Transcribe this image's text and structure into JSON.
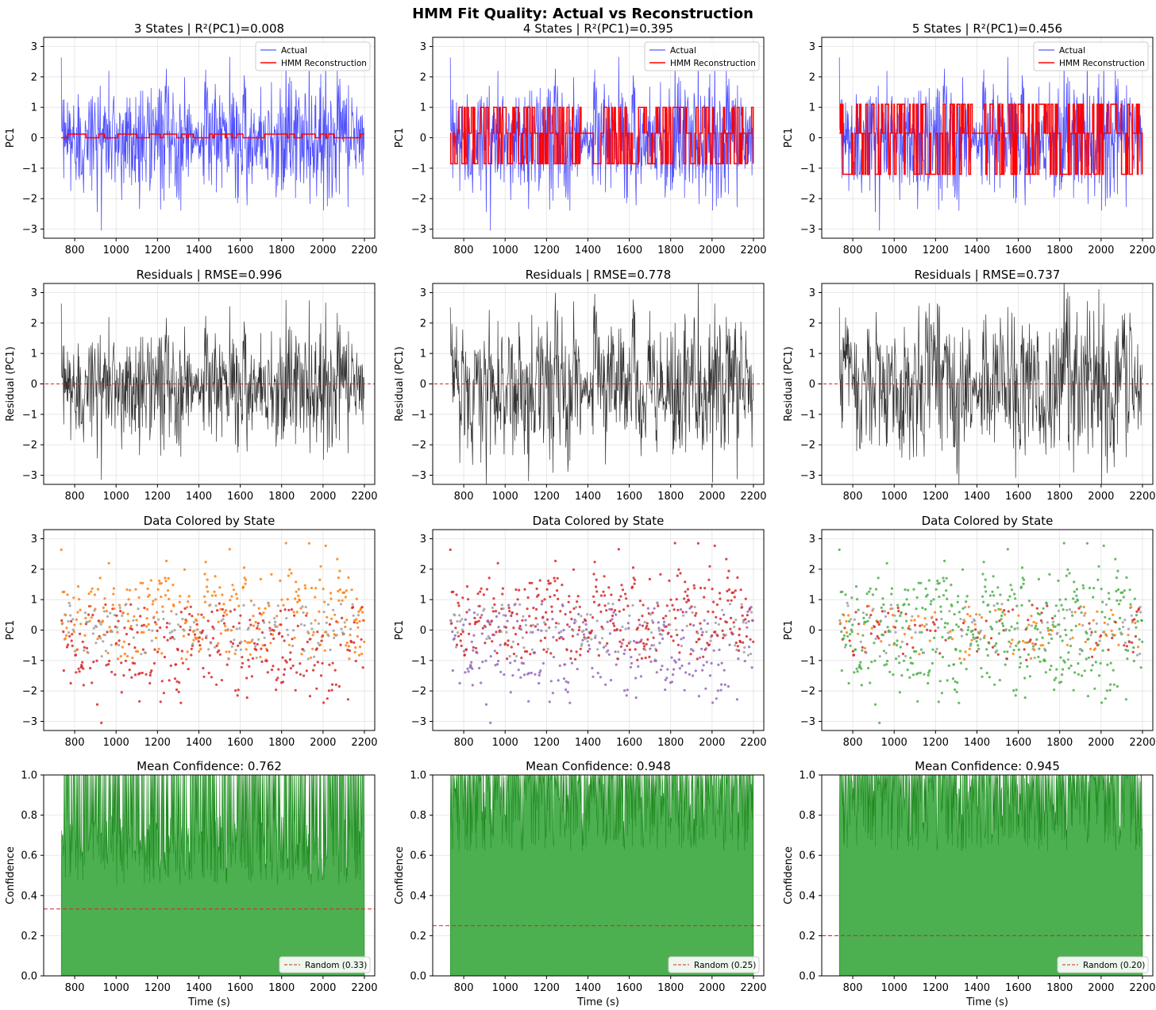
{
  "figure": {
    "suptitle": "HMM Fit Quality: Actual vs Reconstruction"
  },
  "colors": {
    "actual": "#3333ff",
    "reconstruction": "#ff0000",
    "residual": "#333333",
    "zero_line": "#d62728",
    "confidence_fill": "#4caf50",
    "confidence_line": "#1f8a1f",
    "random_line": "#d62728",
    "state_colors": [
      "#a0a0a0",
      "#ff7f0e",
      "#d62728",
      "#9467bd",
      "#4daf4a"
    ]
  },
  "chart_data": [
    {
      "type": "line",
      "row": 0,
      "col": 0,
      "states": 3,
      "title": "3 States | R²(PC1)=0.008",
      "xlabel": "",
      "ylabel": "PC1",
      "xlim": [
        650,
        2250
      ],
      "ylim": [
        -3.3,
        3.3
      ],
      "xticks": [
        800,
        1000,
        1200,
        1400,
        1600,
        1800,
        2000,
        2200
      ],
      "yticks": [
        -3,
        -2,
        -1,
        0,
        1,
        2,
        3
      ],
      "x_range": [
        735,
        2200
      ],
      "recon_levels": [
        0.12,
        0.0
      ],
      "legend": [
        "Actual",
        "HMM Reconstruction"
      ],
      "legend_loc": "upper right"
    },
    {
      "type": "line",
      "row": 0,
      "col": 1,
      "states": 4,
      "title": "4 States | R²(PC1)=0.395",
      "xlabel": "",
      "ylabel": "PC1",
      "xlim": [
        650,
        2250
      ],
      "ylim": [
        -3.3,
        3.3
      ],
      "xticks": [
        800,
        1000,
        1200,
        1400,
        1600,
        1800,
        2000,
        2200
      ],
      "yticks": [
        -3,
        -2,
        -1,
        0,
        1,
        2,
        3
      ],
      "x_range": [
        735,
        2200
      ],
      "recon_levels": [
        1.0,
        0.15,
        -0.85
      ],
      "legend": [
        "Actual",
        "HMM Reconstruction"
      ],
      "legend_loc": "upper right"
    },
    {
      "type": "line",
      "row": 0,
      "col": 2,
      "states": 5,
      "title": "5 States | R²(PC1)=0.456",
      "xlabel": "",
      "ylabel": "PC1",
      "xlim": [
        650,
        2250
      ],
      "ylim": [
        -3.3,
        3.3
      ],
      "xticks": [
        800,
        1000,
        1200,
        1400,
        1600,
        1800,
        2000,
        2200
      ],
      "yticks": [
        -3,
        -2,
        -1,
        0,
        1,
        2,
        3
      ],
      "x_range": [
        735,
        2200
      ],
      "recon_levels": [
        1.1,
        0.15,
        -1.2
      ],
      "legend": [
        "Actual",
        "HMM Reconstruction"
      ],
      "legend_loc": "upper right"
    },
    {
      "type": "line",
      "row": 1,
      "col": 0,
      "states": 3,
      "title": "Residuals | RMSE=0.996",
      "xlabel": "",
      "ylabel": "Residual (PC1)",
      "xlim": [
        650,
        2250
      ],
      "ylim": [
        -3.3,
        3.3
      ],
      "xticks": [
        800,
        1000,
        1200,
        1400,
        1600,
        1800,
        2000,
        2200
      ],
      "yticks": [
        -3,
        -2,
        -1,
        0,
        1,
        2,
        3
      ],
      "x_range": [
        735,
        2200
      ],
      "reference_line": 0
    },
    {
      "type": "line",
      "row": 1,
      "col": 1,
      "states": 4,
      "title": "Residuals | RMSE=0.778",
      "xlabel": "",
      "ylabel": "Residual (PC1)",
      "xlim": [
        650,
        2250
      ],
      "ylim": [
        -3.3,
        3.3
      ],
      "xticks": [
        800,
        1000,
        1200,
        1400,
        1600,
        1800,
        2000,
        2200
      ],
      "yticks": [
        -3,
        -2,
        -1,
        0,
        1,
        2,
        3
      ],
      "x_range": [
        735,
        2200
      ],
      "reference_line": 0
    },
    {
      "type": "line",
      "row": 1,
      "col": 2,
      "states": 5,
      "title": "Residuals | RMSE=0.737",
      "xlabel": "",
      "ylabel": "Residual (PC1)",
      "xlim": [
        650,
        2250
      ],
      "ylim": [
        -3.3,
        3.3
      ],
      "xticks": [
        800,
        1000,
        1200,
        1400,
        1600,
        1800,
        2000,
        2200
      ],
      "yticks": [
        -3,
        -2,
        -1,
        0,
        1,
        2,
        3
      ],
      "x_range": [
        735,
        2200
      ],
      "reference_line": 0
    },
    {
      "type": "scatter",
      "row": 2,
      "col": 0,
      "states": 3,
      "title": "Data Colored by State",
      "xlabel": "",
      "ylabel": "PC1",
      "xlim": [
        650,
        2250
      ],
      "ylim": [
        -3.3,
        3.3
      ],
      "xticks": [
        800,
        1000,
        1200,
        1400,
        1600,
        1800,
        2000,
        2200
      ],
      "yticks": [
        -3,
        -2,
        -1,
        0,
        1,
        2,
        3
      ],
      "x_range": [
        735,
        2200
      ],
      "state_color_index": [
        0,
        1,
        2
      ]
    },
    {
      "type": "scatter",
      "row": 2,
      "col": 1,
      "states": 4,
      "title": "Data Colored by State",
      "xlabel": "",
      "ylabel": "PC1",
      "xlim": [
        650,
        2250
      ],
      "ylim": [
        -3.3,
        3.3
      ],
      "xticks": [
        800,
        1000,
        1200,
        1400,
        1600,
        1800,
        2000,
        2200
      ],
      "yticks": [
        -3,
        -2,
        -1,
        0,
        1,
        2,
        3
      ],
      "x_range": [
        735,
        2200
      ],
      "state_color_index": [
        0,
        2,
        2,
        3
      ]
    },
    {
      "type": "scatter",
      "row": 2,
      "col": 2,
      "states": 5,
      "title": "Data Colored by State",
      "xlabel": "",
      "ylabel": "PC1",
      "xlim": [
        650,
        2250
      ],
      "ylim": [
        -3.3,
        3.3
      ],
      "xticks": [
        800,
        1000,
        1200,
        1400,
        1600,
        1800,
        2000,
        2200
      ],
      "yticks": [
        -3,
        -2,
        -1,
        0,
        1,
        2,
        3
      ],
      "x_range": [
        735,
        2200
      ],
      "state_color_index": [
        1,
        4,
        2,
        0,
        4
      ]
    },
    {
      "type": "area",
      "row": 3,
      "col": 0,
      "states": 3,
      "title": "Mean Confidence: 0.762",
      "xlabel": "Time (s)",
      "ylabel": "Confidence",
      "xlim": [
        650,
        2250
      ],
      "ylim": [
        0,
        1
      ],
      "xticks": [
        800,
        1000,
        1200,
        1400,
        1600,
        1800,
        2000,
        2200
      ],
      "yticks": [
        0.0,
        0.2,
        0.4,
        0.6,
        0.8,
        1.0
      ],
      "ytick_labels": [
        "0.0",
        "0.2",
        "0.4",
        "0.6",
        "0.8",
        "1.0"
      ],
      "x_range": [
        735,
        2200
      ],
      "mean_confidence": 0.762,
      "random_line": 0.333,
      "legend": [
        "Random (0.33)"
      ],
      "legend_loc": "lower right"
    },
    {
      "type": "area",
      "row": 3,
      "col": 1,
      "states": 4,
      "title": "Mean Confidence: 0.948",
      "xlabel": "Time (s)",
      "ylabel": "Confidence",
      "xlim": [
        650,
        2250
      ],
      "ylim": [
        0,
        1
      ],
      "xticks": [
        800,
        1000,
        1200,
        1400,
        1600,
        1800,
        2000,
        2200
      ],
      "yticks": [
        0.0,
        0.2,
        0.4,
        0.6,
        0.8,
        1.0
      ],
      "ytick_labels": [
        "0.0",
        "0.2",
        "0.4",
        "0.6",
        "0.8",
        "1.0"
      ],
      "x_range": [
        735,
        2200
      ],
      "mean_confidence": 0.948,
      "random_line": 0.25,
      "legend": [
        "Random (0.25)"
      ],
      "legend_loc": "lower right"
    },
    {
      "type": "area",
      "row": 3,
      "col": 2,
      "states": 5,
      "title": "Mean Confidence: 0.945",
      "xlabel": "Time (s)",
      "ylabel": "Confidence",
      "xlim": [
        650,
        2250
      ],
      "ylim": [
        0,
        1
      ],
      "xticks": [
        800,
        1000,
        1200,
        1400,
        1600,
        1800,
        2000,
        2200
      ],
      "yticks": [
        0.0,
        0.2,
        0.4,
        0.6,
        0.8,
        1.0
      ],
      "ytick_labels": [
        "0.0",
        "0.2",
        "0.4",
        "0.6",
        "0.8",
        "1.0"
      ],
      "x_range": [
        735,
        2200
      ],
      "mean_confidence": 0.945,
      "random_line": 0.2,
      "legend": [
        "Random (0.20)"
      ],
      "legend_loc": "lower right"
    }
  ]
}
